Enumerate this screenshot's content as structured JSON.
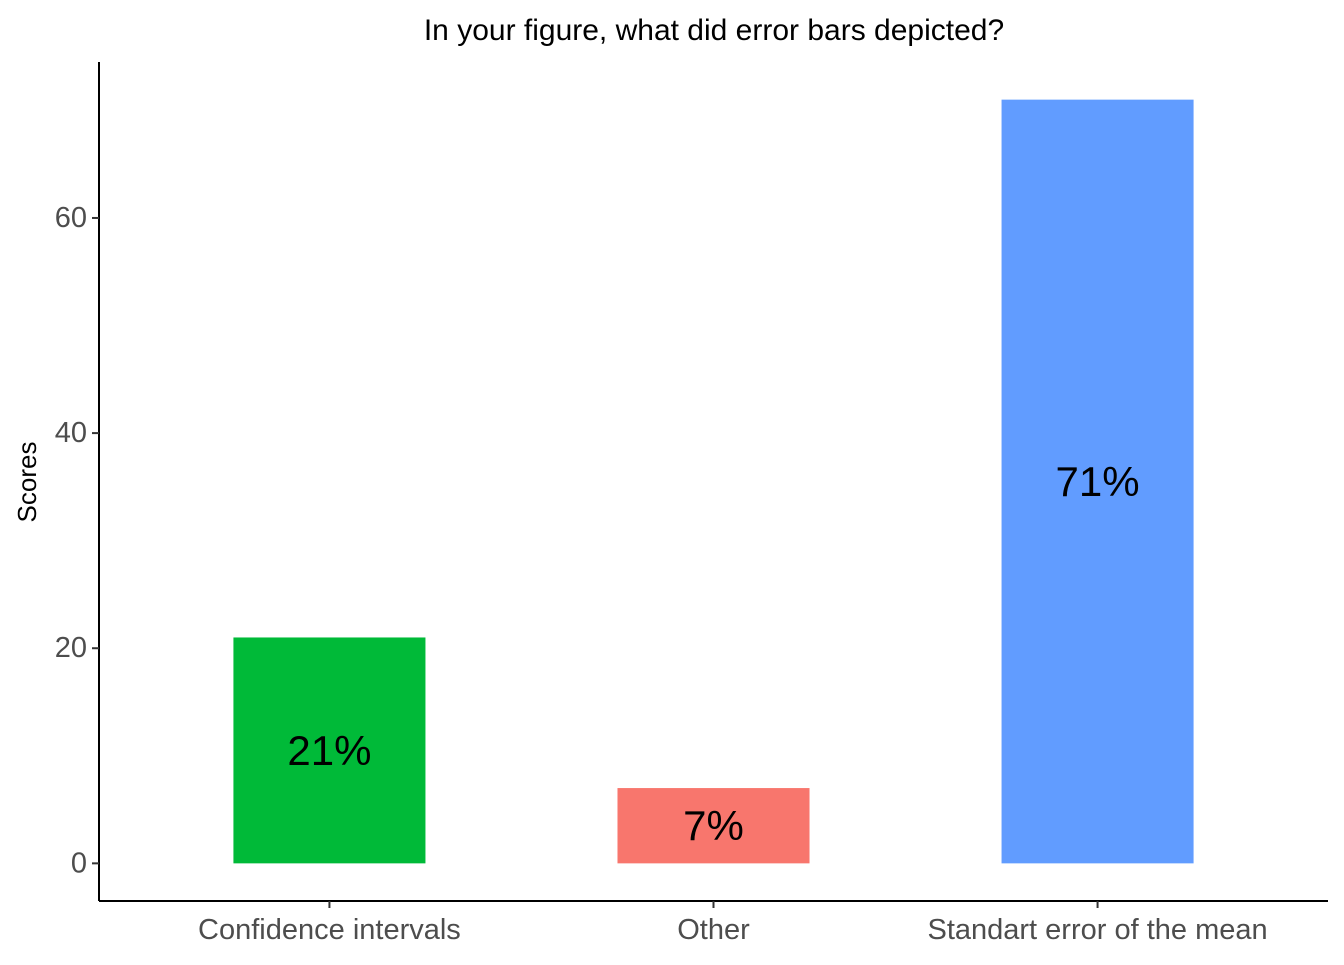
{
  "chart_data": {
    "type": "bar",
    "title": "In your figure, what did error bars depicted?",
    "xlabel": "",
    "ylabel": "Scores",
    "categories": [
      "Confidence intervals",
      "Other",
      "Standart error of the mean"
    ],
    "values": [
      21,
      7,
      71
    ],
    "data_labels": [
      "21%",
      "7%",
      "71%"
    ],
    "colors": [
      "#00BA38",
      "#F8766D",
      "#619CFF"
    ],
    "ylim": [
      -3.5,
      74.5
    ],
    "yticks": [
      0,
      20,
      40,
      60
    ],
    "ytick_labels": [
      "0",
      "20",
      "40",
      "60"
    ],
    "grid": false,
    "legend": "none"
  }
}
